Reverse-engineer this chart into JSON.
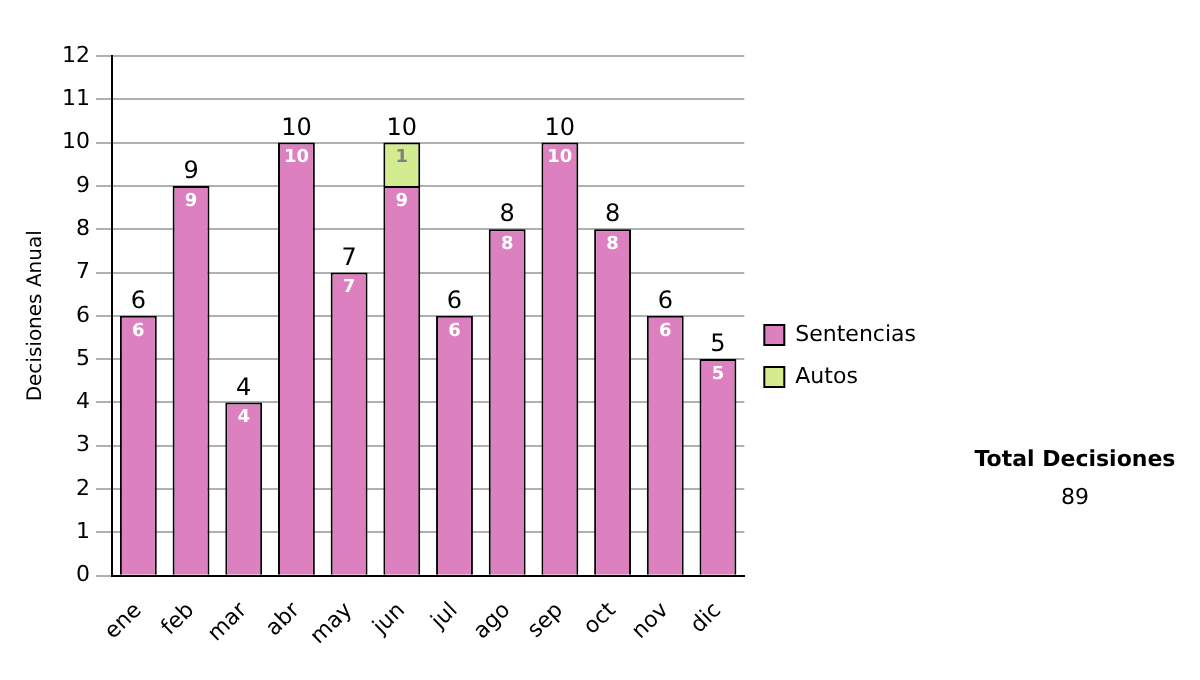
{
  "chart_data": {
    "type": "bar",
    "stacked": true,
    "ylabel": "Decisiones Anual",
    "categories": [
      "ene",
      "feb",
      "mar",
      "abr",
      "may",
      "jun",
      "jul",
      "ago",
      "sep",
      "oct",
      "nov",
      "dic"
    ],
    "series": [
      {
        "name": "Sentencias",
        "color": "#dd80c0",
        "values": [
          6,
          9,
          4,
          10,
          7,
          9,
          6,
          8,
          10,
          8,
          6,
          5
        ]
      },
      {
        "name": "Autos",
        "color": "#d4ec90",
        "values": [
          null,
          null,
          null,
          null,
          null,
          1,
          null,
          null,
          null,
          null,
          null,
          null
        ]
      }
    ],
    "ylim": [
      0,
      12
    ],
    "yticks": [
      0,
      1,
      2,
      3,
      4,
      5,
      6,
      7,
      8,
      9,
      10,
      11,
      12
    ],
    "grid": "y",
    "legend": "right",
    "data_labels": true,
    "totals": [
      "6",
      "9",
      "4",
      "10",
      "7",
      "10",
      "6",
      "8",
      "10",
      "8",
      "6",
      "5"
    ],
    "annotations": [
      "Total Decisiones",
      "89"
    ]
  }
}
